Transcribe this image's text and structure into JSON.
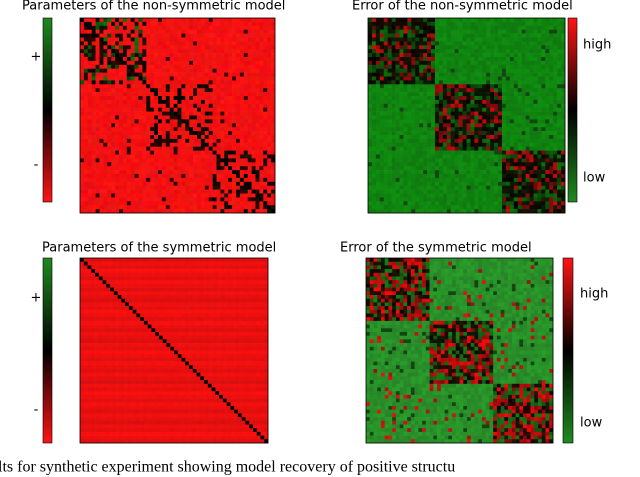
{
  "panels": [
    {
      "title": "Parameters of the non-symmetric model",
      "colorbar": {
        "top": "+",
        "bottom": "-"
      }
    },
    {
      "title": "Error of the non-symmetric model",
      "colorbar": {
        "top": "high",
        "bottom": "low"
      }
    },
    {
      "title": "Parameters of the symmetric model",
      "colorbar": {
        "top": "+",
        "bottom": "-"
      }
    },
    {
      "title": "Error of the symmetric model",
      "colorbar": {
        "top": "high",
        "bottom": "low"
      }
    }
  ],
  "caption": "lts for synthetic experiment showing model recovery of positive structu"
}
